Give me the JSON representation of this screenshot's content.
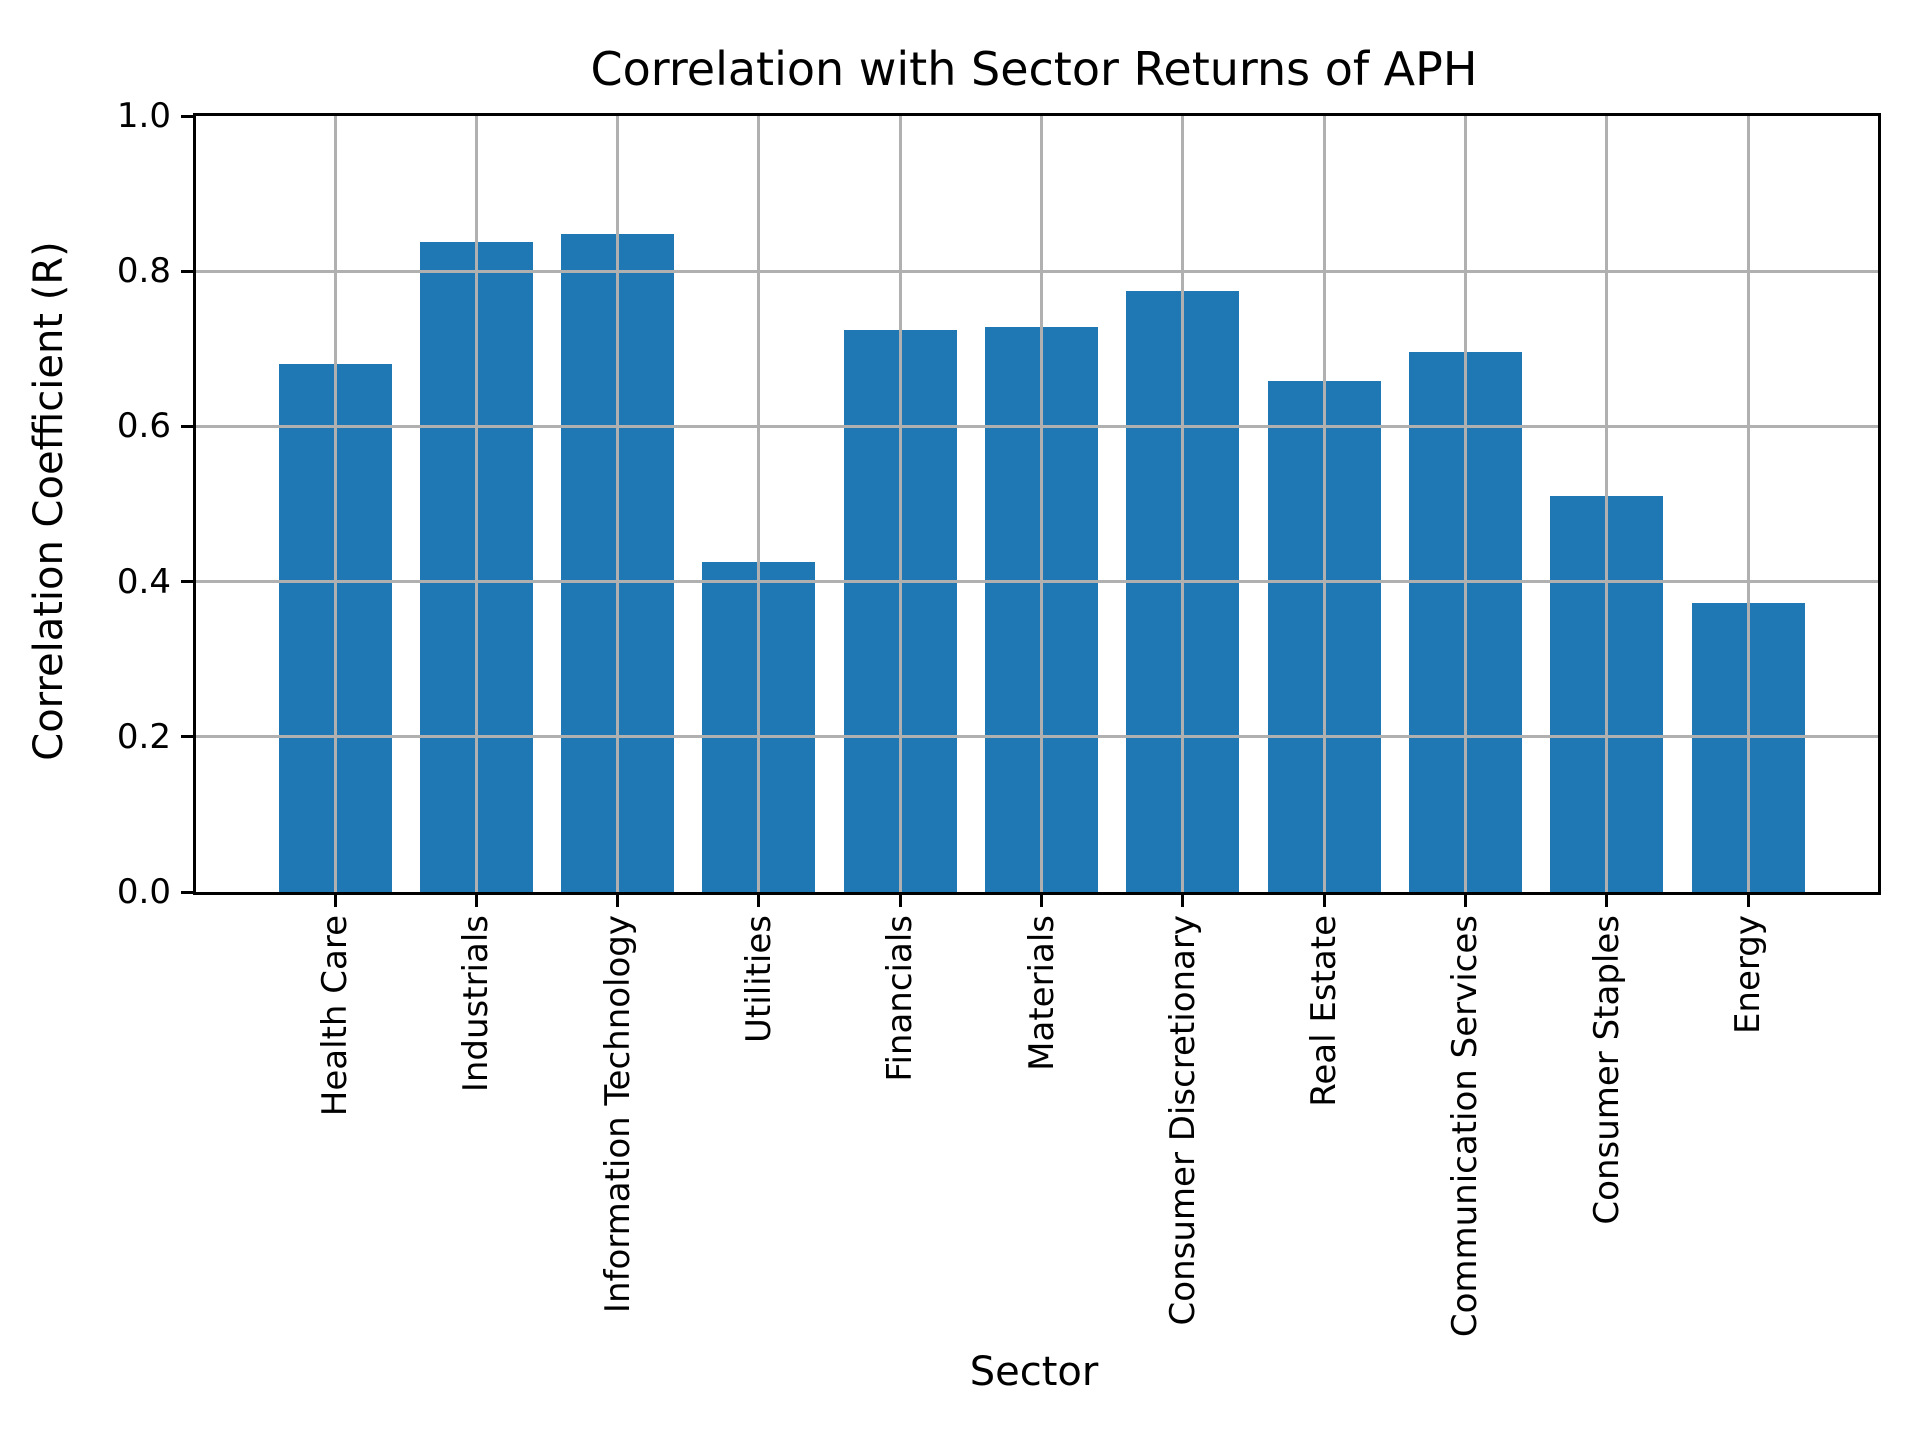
{
  "title": "Correlation with Sector Returns of APH",
  "chart_data": {
    "type": "bar",
    "title": "Correlation with Sector Returns of APH",
    "xlabel": "Sector",
    "ylabel": "Correlation Coefficient (R)",
    "categories": [
      "Health Care",
      "Industrials",
      "Information Technology",
      "Utilities",
      "Financials",
      "Materials",
      "Consumer Discretionary",
      "Real Estate",
      "Communication Services",
      "Consumer Staples",
      "Energy"
    ],
    "values": [
      0.68,
      0.838,
      0.848,
      0.425,
      0.724,
      0.728,
      0.775,
      0.658,
      0.696,
      0.51,
      0.372
    ],
    "ylim": [
      0.0,
      1.0
    ],
    "yticks": [
      "0.0",
      "0.2",
      "0.4",
      "0.6",
      "0.8",
      "1.0"
    ],
    "grid": true,
    "legend": "none",
    "bar_color": "#1f77b4",
    "grid_color": "#b0b0b0"
  }
}
